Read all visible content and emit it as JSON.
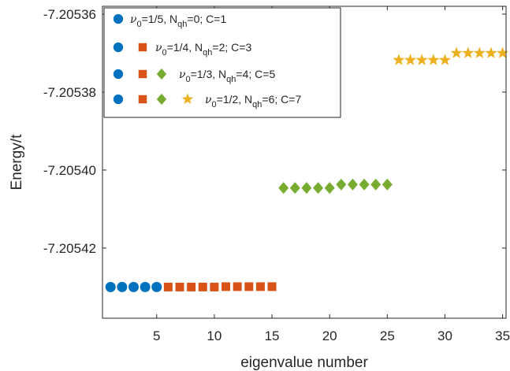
{
  "chart_data": {
    "type": "scatter",
    "xlabel": "eigenvalue number",
    "ylabel": "Energy/t",
    "xlim": [
      0.3,
      35.3
    ],
    "ylim": [
      -7.205438,
      -7.205358
    ],
    "x_ticks": [
      5,
      10,
      15,
      20,
      25,
      30,
      35
    ],
    "x_tick_labels": [
      "5",
      "10",
      "15",
      "20",
      "25",
      "30",
      "35"
    ],
    "y_ticks": [
      -7.20536,
      -7.20538,
      -7.2054,
      -7.20542
    ],
    "y_tick_labels": [
      "-7.20536",
      "-7.20538",
      "-7.20540",
      "-7.20542"
    ],
    "legend_position": "top-left",
    "legend_entries": [
      {
        "label": "ν0=1/5, Nqh=0; C=1",
        "nu_sub": "0",
        "nu_val": "=1/5, N",
        "nqh_sub": "qh",
        "rest": "=0; C=1",
        "marker_count": 1
      },
      {
        "label": "ν0=1/4, Nqh=2; C=3",
        "nu_sub": "0",
        "nu_val": "=1/4, N",
        "nqh_sub": "qh",
        "rest": "=2; C=3",
        "marker_count": 2
      },
      {
        "label": "ν0=1/3, Nqh=4; C=5",
        "nu_sub": "0",
        "nu_val": "=1/3, N",
        "nqh_sub": "qh",
        "rest": "=4; C=5",
        "marker_count": 3
      },
      {
        "label": "ν0=1/2, Nqh=6; C=7",
        "nu_sub": "0",
        "nu_val": "=1/2, N",
        "nqh_sub": "qh",
        "rest": "=6; C=7",
        "marker_count": 4
      }
    ],
    "series": [
      {
        "marker": "circle",
        "color": "#0072BD",
        "x": [
          1,
          2,
          3,
          4,
          5
        ],
        "y": [
          -7.20543,
          -7.20543,
          -7.20543,
          -7.20543,
          -7.20543
        ]
      },
      {
        "marker": "square",
        "color": "#D95319",
        "x": [
          6,
          7,
          8,
          9,
          10,
          11,
          12,
          13,
          14,
          15
        ],
        "y": [
          -7.20543,
          -7.20543,
          -7.20543,
          -7.20543,
          -7.20543,
          -7.2054299,
          -7.2054299,
          -7.2054299,
          -7.2054299,
          -7.2054299
        ]
      },
      {
        "marker": "diamond",
        "color": "#77AC30",
        "x": [
          16,
          17,
          18,
          19,
          20,
          21,
          22,
          23,
          24,
          25
        ],
        "y": [
          -7.2054046,
          -7.2054046,
          -7.2054046,
          -7.2054046,
          -7.2054046,
          -7.2054037,
          -7.2054037,
          -7.2054037,
          -7.2054037,
          -7.2054037
        ]
      },
      {
        "marker": "star",
        "color": "#EDB120",
        "x": [
          26,
          27,
          28,
          29,
          30,
          31,
          32,
          33,
          34,
          35
        ],
        "y": [
          -7.2053718,
          -7.2053718,
          -7.2053718,
          -7.2053718,
          -7.2053718,
          -7.20537,
          -7.20537,
          -7.20537,
          -7.20537,
          -7.20537
        ]
      }
    ]
  }
}
